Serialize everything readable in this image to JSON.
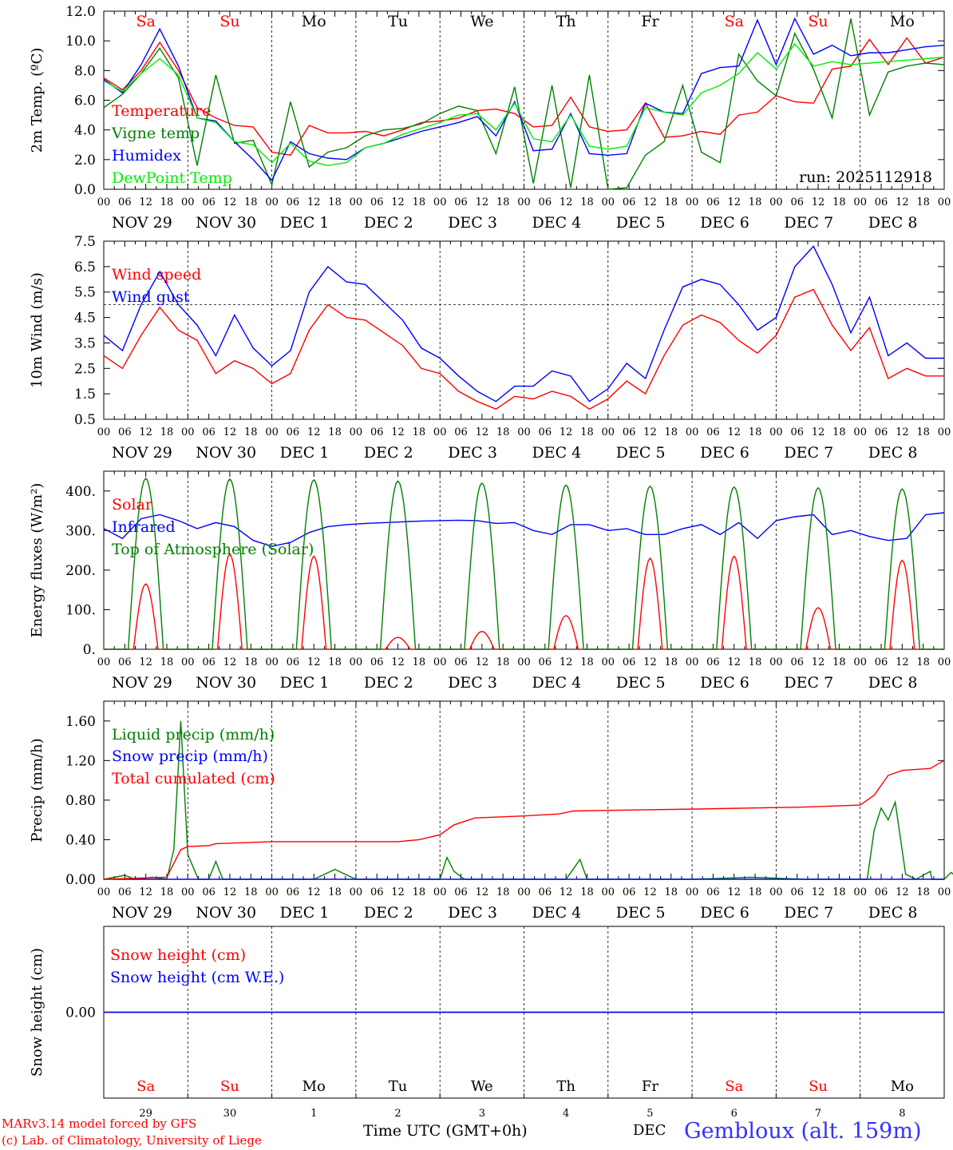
{
  "run_label": "run: 2025112918",
  "x_axis": {
    "hour_labels": [
      "00",
      "06",
      "12",
      "18"
    ],
    "final_hour": "00",
    "date_labels": [
      "NOV 29",
      "NOV 30",
      "DEC  1",
      "DEC  2",
      "DEC  3",
      "DEC  4",
      "DEC  5",
      "DEC  6",
      "DEC  7",
      "DEC  8"
    ],
    "days": [
      "Sa",
      "Su",
      "Mo",
      "Tu",
      "We",
      "Th",
      "Fr",
      "Sa",
      "Su",
      "Mo"
    ],
    "day_colors": [
      "#ff0000",
      "#ff0000",
      "#000000",
      "#000000",
      "#000000",
      "#000000",
      "#000000",
      "#ff0000",
      "#ff0000",
      "#000000"
    ],
    "day_numbers": [
      "29",
      "30",
      "1",
      "2",
      "3",
      "4",
      "5",
      "6",
      "7",
      "8"
    ],
    "month": "DEC",
    "title": "Time UTC (GMT+0h)"
  },
  "footer": {
    "model": "MARv3.14 model forced by GFS",
    "credit": "(c) Lab. of Climatology, University of Liege",
    "station": "Gembloux (alt. 159m)"
  },
  "colors": {
    "red": "#ff0000",
    "green": "#008000",
    "blue": "#0000ff",
    "lightgreen": "#00ee00"
  },
  "chart_data": [
    {
      "type": "line",
      "title": "Temperature",
      "ylabel": "2m Temp. (ºC)",
      "ylim": [
        0,
        12
      ],
      "ytick_labels": [
        "0.0",
        "2.0",
        "4.0",
        "6.0",
        "8.0",
        "10.0",
        "12.0"
      ],
      "x_unit": "hours since 2025-11-29 00 UTC (points every 6 h)",
      "series": [
        {
          "name": "Temperature",
          "color": "red",
          "values": [
            7.5,
            6.7,
            8.0,
            9.9,
            8.0,
            5.5,
            4.8,
            4.3,
            4.2,
            2.5,
            2.3,
            4.3,
            3.8,
            3.8,
            3.9,
            3.6,
            4.0,
            4.5,
            4.6,
            4.8,
            5.3,
            5.4,
            5.1,
            4.2,
            4.3,
            6.2,
            4.2,
            3.9,
            4.0,
            5.8,
            3.5,
            3.6,
            3.9,
            3.7,
            5.0,
            5.2,
            6.3,
            5.9,
            5.8,
            8.1,
            8.3,
            10.1,
            8.4,
            10.2,
            8.5,
            8.9
          ]
        },
        {
          "name": "Vigne temp",
          "color": "green",
          "values": [
            5.5,
            6.4,
            7.8,
            9.5,
            7.5,
            1.6,
            7.7,
            3.1,
            3.3,
            0.3,
            5.9,
            1.5,
            2.5,
            2.8,
            3.6,
            4.0,
            4.1,
            4.4,
            5.1,
            5.6,
            5.3,
            2.4,
            6.9,
            0.4,
            7.0,
            0.1,
            7.7,
            0.0,
            0.1,
            2.3,
            3.2,
            7.0,
            2.5,
            1.8,
            9.1,
            7.3,
            6.3,
            10.5,
            8.1,
            4.8,
            11.5,
            5.0,
            7.9,
            8.3,
            8.5,
            8.4
          ]
        },
        {
          "name": "Humidex",
          "color": "blue",
          "values": [
            7.4,
            6.5,
            8.4,
            10.8,
            8.3,
            4.8,
            4.6,
            3.2,
            2.0,
            0.6,
            3.2,
            2.4,
            2.1,
            2.0,
            2.8,
            3.1,
            3.5,
            3.9,
            4.2,
            4.5,
            4.9,
            3.6,
            5.9,
            2.6,
            2.7,
            5.1,
            2.4,
            2.3,
            2.4,
            5.8,
            5.2,
            5.1,
            7.8,
            8.2,
            8.3,
            11.4,
            8.4,
            11.5,
            9.1,
            9.7,
            9.0,
            9.2,
            9.2,
            9.4,
            9.6,
            9.7
          ]
        },
        {
          "name": "DewPoint Temp",
          "color": "lightgreen",
          "values": [
            7.3,
            6.6,
            7.8,
            8.8,
            7.7,
            4.8,
            4.5,
            3.2,
            3.0,
            1.8,
            3.1,
            1.9,
            1.6,
            1.8,
            2.8,
            3.1,
            3.7,
            4.1,
            4.5,
            5.0,
            5.1,
            4.0,
            5.8,
            3.4,
            3.2,
            5.0,
            2.9,
            2.7,
            2.9,
            5.5,
            5.2,
            5.0,
            6.5,
            7.0,
            7.8,
            9.2,
            8.1,
            9.8,
            8.3,
            8.6,
            8.4,
            8.5,
            8.6,
            8.7,
            8.8,
            8.9
          ]
        }
      ]
    },
    {
      "type": "line",
      "title": "Wind",
      "ylabel": "10m Wind (m/s)",
      "ylim": [
        0.5,
        7.5
      ],
      "ytick_labels": [
        "0.5",
        "1.5",
        "2.5",
        "3.5",
        "4.5",
        "5.5",
        "6.5",
        "7.5"
      ],
      "reference_line": 5.0,
      "series": [
        {
          "name": "Wind speed",
          "color": "red",
          "values": [
            3.0,
            2.5,
            3.8,
            4.9,
            4.0,
            3.6,
            2.3,
            2.8,
            2.5,
            1.9,
            2.3,
            4.0,
            5.0,
            4.5,
            4.4,
            3.9,
            3.4,
            2.5,
            2.3,
            1.6,
            1.2,
            0.9,
            1.4,
            1.3,
            1.6,
            1.4,
            0.9,
            1.3,
            2.0,
            1.5,
            3.0,
            4.2,
            4.6,
            4.3,
            3.6,
            3.1,
            3.8,
            5.3,
            5.6,
            4.2,
            3.2,
            4.1,
            2.1,
            2.5,
            2.2,
            2.2
          ]
        },
        {
          "name": "Wind gust",
          "color": "blue",
          "values": [
            3.8,
            3.2,
            5.0,
            6.3,
            5.0,
            4.2,
            3.0,
            4.6,
            3.3,
            2.6,
            3.2,
            5.5,
            6.5,
            5.9,
            5.8,
            5.1,
            4.4,
            3.3,
            2.9,
            2.2,
            1.6,
            1.2,
            1.8,
            1.8,
            2.4,
            2.2,
            1.2,
            1.7,
            2.7,
            2.1,
            4.0,
            5.7,
            6.0,
            5.8,
            5.0,
            4.0,
            4.5,
            6.5,
            7.3,
            5.8,
            3.9,
            5.3,
            3.0,
            3.5,
            2.9,
            2.9
          ]
        }
      ]
    },
    {
      "type": "line",
      "title": "Energy fluxes",
      "ylabel": "Energy fluxes (W/m²)",
      "ylim": [
        0,
        450
      ],
      "ytick_labels": [
        "0.",
        "100.",
        "200.",
        "300.",
        "400."
      ],
      "series": [
        {
          "name": "Solar",
          "color": "red",
          "peak_hour_of_day": 12,
          "daily_peak": [
            165,
            240,
            235,
            30,
            45,
            85,
            230,
            235,
            105,
            225
          ]
        },
        {
          "name": "Infrared",
          "color": "blue",
          "values": [
            305,
            280,
            330,
            340,
            325,
            305,
            320,
            310,
            275,
            260,
            270,
            295,
            310,
            315,
            318,
            320,
            322,
            324,
            325,
            326,
            325,
            318,
            320,
            300,
            290,
            315,
            315,
            300,
            305,
            290,
            290,
            305,
            315,
            290,
            320,
            280,
            325,
            335,
            340,
            290,
            300,
            285,
            275,
            280,
            340,
            345
          ]
        },
        {
          "name": "Top of Atmosphere (Solar)",
          "color": "green",
          "peak_hour_of_day": 12,
          "daily_peak": [
            432,
            430,
            428,
            425,
            420,
            415,
            412,
            410,
            408,
            405
          ]
        }
      ]
    },
    {
      "type": "line",
      "title": "Precipitation",
      "ylabel": "Precip (mm/h)",
      "ylim": [
        0,
        1.8
      ],
      "ytick_labels": [
        "0.00",
        "0.40",
        "0.80",
        "1.20",
        "1.60"
      ],
      "series": [
        {
          "name": "Liquid precip (mm/h)",
          "color": "green",
          "points": [
            [
              0,
              0.0
            ],
            [
              6,
              0.04
            ],
            [
              9,
              0.0
            ],
            [
              14,
              0.02
            ],
            [
              18,
              0.0
            ],
            [
              20,
              0.3
            ],
            [
              22,
              1.6
            ],
            [
              24,
              0.25
            ],
            [
              27,
              0.0
            ],
            [
              30,
              0.0
            ],
            [
              32,
              0.18
            ],
            [
              34,
              0.0
            ],
            [
              60,
              0.0
            ],
            [
              66,
              0.1
            ],
            [
              72,
              0.0
            ],
            [
              96,
              0.0
            ],
            [
              98,
              0.22
            ],
            [
              100,
              0.08
            ],
            [
              103,
              0.0
            ],
            [
              132,
              0.0
            ],
            [
              136,
              0.2
            ],
            [
              138,
              0.0
            ],
            [
              168,
              0.0
            ],
            [
              185,
              0.02
            ],
            [
              200,
              0.0
            ],
            [
              218,
              0.0
            ],
            [
              220,
              0.5
            ],
            [
              222,
              0.72
            ],
            [
              224,
              0.6
            ],
            [
              226,
              0.78
            ],
            [
              229,
              0.05
            ],
            [
              232,
              0.0
            ],
            [
              236,
              0.08
            ],
            [
              238,
              0.0
            ],
            [
              242,
              0.07
            ],
            [
              244,
              0.0
            ],
            [
              236.5,
              0.0
            ],
            [
              237.5,
              0.0
            ],
            [
              240,
              0.0
            ]
          ]
        },
        {
          "name": "Snow precip (mm/h)",
          "color": "blue",
          "points": [
            [
              0,
              0.0
            ],
            [
              240,
              0.0
            ]
          ]
        },
        {
          "name": "Total cumulated (cm)",
          "color": "red",
          "points": [
            [
              0,
              0.0
            ],
            [
              18,
              0.02
            ],
            [
              22,
              0.3
            ],
            [
              24,
              0.33
            ],
            [
              30,
              0.34
            ],
            [
              32,
              0.36
            ],
            [
              48,
              0.38
            ],
            [
              84,
              0.38
            ],
            [
              90,
              0.4
            ],
            [
              96,
              0.45
            ],
            [
              100,
              0.55
            ],
            [
              106,
              0.62
            ],
            [
              120,
              0.64
            ],
            [
              130,
              0.66
            ],
            [
              134,
              0.69
            ],
            [
              150,
              0.7
            ],
            [
              170,
              0.71
            ],
            [
              200,
              0.73
            ],
            [
              216,
              0.75
            ],
            [
              220,
              0.85
            ],
            [
              224,
              1.05
            ],
            [
              228,
              1.1
            ],
            [
              236,
              1.12
            ],
            [
              240,
              1.2
            ]
          ]
        }
      ]
    },
    {
      "type": "line",
      "title": "Snow height",
      "ylabel": "Snow height (cm)",
      "ytick_labels": [
        "0.00"
      ],
      "series": [
        {
          "name": "Snow height (cm)",
          "color": "red",
          "values": [
            0.0,
            0.0
          ]
        },
        {
          "name": "Snow height (cm W.E.)",
          "color": "blue",
          "values": [
            0.0,
            0.0
          ]
        }
      ]
    }
  ]
}
